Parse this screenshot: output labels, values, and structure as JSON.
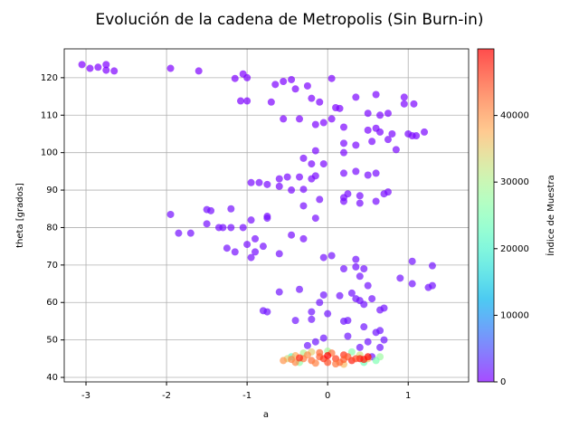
{
  "chart_data": {
    "type": "scatter",
    "title": "Evolución de la cadena de Metropolis (Sin Burn-in)",
    "x_label": "a",
    "y_label": "theta [grados]",
    "colorbar_label": "Índice de Muestra",
    "colormap": "rainbow",
    "alpha": 0.7,
    "grid": true,
    "xlim": [
      -3.27,
      1.75
    ],
    "ylim": [
      38.8,
      127.7
    ],
    "clim": [
      0,
      50000
    ],
    "xticks": [
      -3,
      -2,
      -1,
      0,
      1
    ],
    "yticks": [
      40,
      50,
      60,
      70,
      80,
      90,
      100,
      110,
      120
    ],
    "cticks": [
      0,
      10000,
      20000,
      30000,
      40000
    ],
    "x": [
      -3.05,
      -2.95,
      -2.85,
      -2.75,
      -2.75,
      -2.65,
      -1.95,
      -1.6,
      -1.15,
      -1.05,
      -1,
      -1,
      -1.08,
      -0.65,
      -0.55,
      -0.45,
      -0.4,
      -0.25,
      -0.2,
      -0.1,
      -0.7,
      -0.55,
      -0.35,
      -0.15,
      -0.05,
      0.05,
      0.05,
      0.1,
      0.15,
      0.2,
      0.35,
      0.6,
      0.5,
      0.65,
      0.75,
      0.95,
      0.95,
      1.07,
      0.5,
      0.6,
      0.65,
      0.75,
      0.8,
      1,
      1.05,
      1.1,
      1.2,
      0.85,
      0.55,
      0.35,
      0.2,
      0.2,
      -0.05,
      -0.15,
      -0.2,
      -0.3,
      -0.35,
      -0.5,
      -0.6,
      -0.6,
      -0.75,
      -0.85,
      -0.95,
      -0.45,
      -0.15,
      -0.2,
      -0.3,
      0.2,
      0.35,
      0.5,
      0.6,
      0.7,
      0.75,
      0.6,
      0.4,
      0.2,
      0.2,
      0.25,
      0.4,
      -0.1,
      -0.15,
      -0.3,
      -0.3,
      -0.45,
      -0.75,
      -0.95,
      -1.05,
      -1,
      -0.9,
      -0.9,
      -0.95,
      -0.8,
      -0.6,
      -1.15,
      -1.2,
      -1.3,
      -1.5,
      -1.45,
      -1.35,
      -1.25,
      -1.7,
      -1.85,
      -1.95,
      -1.5,
      -1.2,
      -0.75,
      0.05,
      -0.05,
      0.35,
      0.35,
      0.45,
      0.2,
      0.4,
      1.05,
      1.3,
      0.9,
      1.05,
      1.3,
      1.25,
      0.5,
      0.55,
      0.4,
      0.3,
      0.35,
      0.15,
      0.7,
      0.65,
      0.45,
      -0.35,
      -0.6,
      -0.05,
      -0.1,
      -0.8,
      -0.75,
      -0.2,
      0,
      -0.4,
      -0.2,
      0.2,
      0.25,
      0.45,
      0.6,
      0.65,
      0.7,
      0.5,
      0.65,
      0.4,
      0.25,
      -0.05,
      -0.15,
      -0.25,
      0.55,
      -0.45,
      0.65,
      0.6,
      -0.3,
      0.3,
      0.45,
      -0.35,
      0,
      -0.5,
      0.5,
      -0.2,
      0.2,
      0.4,
      -0.4,
      -0.55,
      -0.4,
      -0.3,
      -0.2,
      -0.1,
      0,
      0.1,
      0.2,
      0.3,
      0.4,
      -0.25,
      -0.15,
      0.05,
      0.15,
      0.25,
      0.35,
      -0.05,
      -0.35,
      0.45,
      0.5,
      -0.45,
      0.1,
      -0.1,
      0.2,
      0
    ],
    "values": [
      123.5,
      122.5,
      122.8,
      123.5,
      122,
      121.8,
      122.5,
      121.8,
      119.8,
      121,
      120,
      113.8,
      113.8,
      118.2,
      119,
      119.5,
      117,
      117.8,
      114.5,
      113.5,
      113.5,
      109,
      109,
      107.5,
      108,
      109,
      119.8,
      112,
      111.8,
      106.8,
      114.8,
      115.5,
      110.5,
      110,
      110.5,
      114.8,
      113,
      113,
      106,
      106.5,
      105.5,
      103.5,
      105,
      105,
      104.5,
      104.5,
      105.5,
      100.8,
      103,
      102,
      102.5,
      100,
      97,
      100.5,
      97,
      98.5,
      93.5,
      93.5,
      93,
      91,
      91.5,
      92,
      92,
      90,
      93.8,
      93,
      90.2,
      94.5,
      95,
      94,
      94.5,
      89,
      89.5,
      87,
      86.5,
      87,
      88,
      89,
      88.5,
      87.5,
      82.5,
      85.8,
      77,
      78,
      83,
      82,
      80,
      75.5,
      77,
      73.5,
      72,
      75,
      73,
      73.5,
      80,
      80,
      81,
      84.5,
      80,
      74.5,
      78.5,
      78.5,
      83.5,
      84.8,
      85,
      82.5,
      72.5,
      72,
      71.5,
      69.5,
      69,
      69,
      67,
      71,
      69.8,
      66.5,
      65,
      64.5,
      64,
      64.5,
      61,
      60.5,
      62.5,
      61,
      61.8,
      58.5,
      58,
      59.5,
      63.5,
      62.8,
      62,
      60,
      57.8,
      57.5,
      57.5,
      57,
      55.2,
      55.5,
      55,
      55.2,
      53.5,
      52,
      52.5,
      50,
      49.5,
      48,
      48,
      51,
      50.5,
      49.5,
      48.5,
      45.5,
      45.5,
      45.5,
      44.5,
      46.5,
      46.8,
      44,
      44,
      47,
      45,
      45,
      46.8,
      43.5,
      46,
      45.8,
      44.5,
      44,
      45,
      44.5,
      45.5,
      44,
      45,
      46,
      44.5,
      45,
      46,
      43.8,
      46.5,
      44,
      45.5,
      45,
      45,
      45.2,
      44.8,
      45.5,
      44.8,
      43.6,
      46.6,
      44.8,
      45.8
    ],
    "color_values": [
      0,
      10,
      20,
      30,
      40,
      50,
      60,
      70,
      80,
      90,
      100,
      110,
      120,
      130,
      140,
      150,
      160,
      170,
      180,
      190,
      200,
      210,
      220,
      230,
      240,
      250,
      260,
      270,
      280,
      290,
      300,
      310,
      320,
      330,
      340,
      350,
      360,
      370,
      380,
      390,
      400,
      410,
      420,
      430,
      440,
      450,
      460,
      470,
      480,
      490,
      500,
      510,
      520,
      530,
      540,
      550,
      560,
      570,
      580,
      590,
      600,
      610,
      620,
      630,
      640,
      650,
      660,
      670,
      680,
      690,
      700,
      710,
      720,
      730,
      740,
      750,
      760,
      770,
      780,
      790,
      800,
      810,
      820,
      830,
      840,
      850,
      860,
      870,
      880,
      890,
      900,
      910,
      920,
      930,
      940,
      950,
      960,
      970,
      980,
      990,
      1000,
      1010,
      1020,
      1030,
      1040,
      1050,
      1060,
      1070,
      1080,
      1090,
      1100,
      1110,
      1120,
      1130,
      1140,
      1150,
      1160,
      1170,
      1180,
      1190,
      1200,
      1210,
      1220,
      1230,
      1240,
      1250,
      1260,
      1270,
      1280,
      1290,
      1300,
      1310,
      1320,
      1330,
      1340,
      1350,
      1360,
      1370,
      1380,
      1390,
      1400,
      1410,
      1420,
      1430,
      1440,
      1450,
      1460,
      1470,
      1480,
      1490,
      1500,
      1510,
      22000,
      28000,
      25000,
      30000,
      26000,
      24000,
      27000,
      29000,
      34000,
      36000,
      35000,
      37000,
      33000,
      38000,
      40000,
      41000,
      42000,
      43000,
      44000,
      45000,
      46000,
      47000,
      48000,
      49000,
      40500,
      41500,
      42500,
      43500,
      44500,
      45500,
      46500,
      47500,
      48500,
      49500,
      41200,
      42200,
      43200,
      44200,
      49900
    ]
  }
}
